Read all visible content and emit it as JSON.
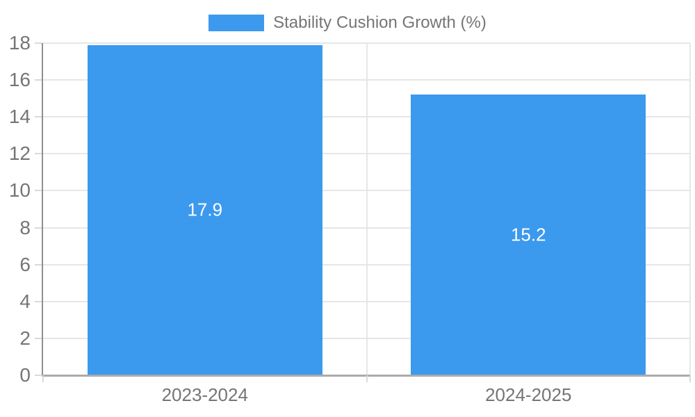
{
  "legend": {
    "label": "Stability Cushion Growth (%)"
  },
  "chart_data": {
    "type": "bar",
    "title": "",
    "xlabel": "",
    "ylabel": "",
    "categories": [
      "2023-2024",
      "2024-2025"
    ],
    "series": [
      {
        "name": "Stability Cushion Growth (%)",
        "values": [
          17.9,
          15.2
        ],
        "color": "#3B99EE"
      }
    ],
    "data_labels": [
      "17.9",
      "15.2"
    ],
    "yticks": [
      0,
      2,
      4,
      6,
      8,
      10,
      12,
      14,
      16,
      18
    ],
    "ylim": [
      0,
      18
    ],
    "ytick_step": 2,
    "grid": true,
    "legend_position": "top-center",
    "value_labels_inside_bars": true
  },
  "colors": {
    "background": "#FFFFFF",
    "bar": "#3B99EE",
    "axis_text": "#757575",
    "grid": "#E6E6E6",
    "tick": "#D9D9D9",
    "y_axis_line": "#8F8F8F",
    "x_axis_line": "#ABABAB",
    "value_label": "#FFFFFF"
  }
}
